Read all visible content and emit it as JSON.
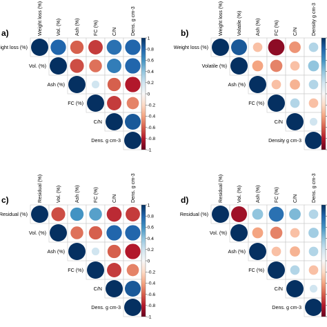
{
  "chart_data": [
    {
      "type": "heatmap",
      "panel_label": "a)",
      "labels": [
        "Weight loss (%)",
        "Vol. (%)",
        "Ash (%)",
        "FC (%)",
        "C/N",
        "Dens. g cm-3"
      ],
      "matrix": [
        [
          1,
          0.8,
          -0.6,
          -0.7,
          0.75,
          0.8
        ],
        [
          null,
          1,
          -0.65,
          -0.55,
          0.7,
          0.8
        ],
        [
          null,
          null,
          1,
          0.2,
          -0.6,
          -0.8
        ],
        [
          null,
          null,
          null,
          1,
          -0.7,
          -0.5
        ],
        [
          null,
          null,
          null,
          null,
          1,
          0.85
        ],
        [
          null,
          null,
          null,
          null,
          null,
          1
        ]
      ],
      "colorbar_ticks": [
        "1",
        "0.8",
        "0.6",
        "0.4",
        "0.2",
        "0",
        "-0.2",
        "-0.4",
        "-0.6",
        "-0.8",
        "-1"
      ],
      "color_range": [
        -1,
        1
      ],
      "triangle": "upper",
      "colorbar": "right"
    },
    {
      "type": "heatmap",
      "panel_label": "b)",
      "labels": [
        "Weight loss (%)",
        "Volatile (%)",
        "Ash (%)",
        "FC (%)",
        "C/N",
        "Density g cm-3"
      ],
      "matrix": [
        [
          1,
          0.85,
          -0.3,
          -0.9,
          -0.45,
          0.3
        ],
        [
          null,
          1,
          -0.4,
          -0.5,
          -0.3,
          0.4
        ],
        [
          null,
          null,
          1,
          -0.3,
          -0.35,
          0.3
        ],
        [
          null,
          null,
          null,
          1,
          0.3,
          -0.3
        ],
        [
          null,
          null,
          null,
          null,
          1,
          0.2
        ],
        [
          null,
          null,
          null,
          null,
          null,
          1
        ]
      ],
      "colorbar_ticks": [
        "1",
        "0.8",
        "0.6",
        "0.4",
        "0.2",
        "0",
        "-0.2",
        "-0.4",
        "-0.6",
        "-0.8",
        "-1"
      ],
      "color_range": [
        -1,
        1
      ],
      "triangle": "upper",
      "colorbar": "right"
    },
    {
      "type": "heatmap",
      "panel_label": "c)",
      "labels": [
        "Residual (%)",
        "Vol. (%)",
        "Ash (%)",
        "FC (%)",
        "C/N",
        "Dens. g cm-3"
      ],
      "matrix": [
        [
          1,
          -0.65,
          0.6,
          0.55,
          -0.75,
          -0.7
        ],
        [
          null,
          1,
          -0.55,
          -0.6,
          0.8,
          0.8
        ],
        [
          null,
          null,
          1,
          0.2,
          -0.6,
          -0.8
        ],
        [
          null,
          null,
          null,
          1,
          -0.7,
          -0.5
        ],
        [
          null,
          null,
          null,
          null,
          1,
          0.85
        ],
        [
          null,
          null,
          null,
          null,
          null,
          1
        ]
      ],
      "colorbar_ticks": [
        "1",
        "0.8",
        "0.6",
        "0.4",
        "0.2",
        "0",
        "-0.2",
        "-0.4",
        "-0.6",
        "-0.8",
        "-1"
      ],
      "color_range": [
        -1,
        1
      ],
      "triangle": "upper",
      "colorbar": "right"
    },
    {
      "type": "heatmap",
      "panel_label": "d)",
      "labels": [
        "Residual (%)",
        "Vol. (%)",
        "Ash (%)",
        "FC (%)",
        "C/N",
        "Dens. g cm-3"
      ],
      "matrix": [
        [
          1,
          -0.85,
          0.4,
          0.75,
          0.45,
          0.3
        ],
        [
          null,
          1,
          -0.4,
          -0.5,
          -0.3,
          0.35
        ],
        [
          null,
          null,
          1,
          -0.3,
          -0.35,
          0.3
        ],
        [
          null,
          null,
          null,
          1,
          0.3,
          -0.3
        ],
        [
          null,
          null,
          null,
          null,
          1,
          0.2
        ],
        [
          null,
          null,
          null,
          null,
          null,
          1
        ]
      ],
      "colorbar_ticks": [
        "1",
        "0.8",
        "0.6",
        "0.4",
        "0.2",
        "0",
        "-0.2",
        "-0.4",
        "-0.6",
        "-0.8",
        "-1"
      ],
      "color_range": [
        -1,
        1
      ],
      "triangle": "upper",
      "colorbar": "right"
    }
  ]
}
